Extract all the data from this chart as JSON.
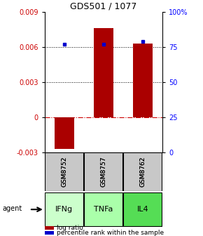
{
  "title": "GDS501 / 1077",
  "samples": [
    "GSM8752",
    "GSM8757",
    "GSM8762"
  ],
  "agents": [
    "IFNg",
    "TNFa",
    "IL4"
  ],
  "log_ratios": [
    -0.0027,
    0.0076,
    0.0063
  ],
  "percentile_ranks": [
    77,
    77,
    79
  ],
  "bar_color": "#aa0000",
  "dot_color": "#0000cc",
  "ylim_left": [
    -0.003,
    0.009
  ],
  "ylim_right": [
    0,
    100
  ],
  "yticks_left": [
    -0.003,
    0,
    0.003,
    0.006,
    0.009
  ],
  "yticks_right": [
    0,
    25,
    50,
    75,
    100
  ],
  "sample_bg": "#c8c8c8",
  "agent_colors": [
    "#ccffcc",
    "#aaffaa",
    "#55dd55"
  ],
  "bar_width": 0.5,
  "legend_log_ratio": "log ratio",
  "legend_percentile": "percentile rank within the sample"
}
